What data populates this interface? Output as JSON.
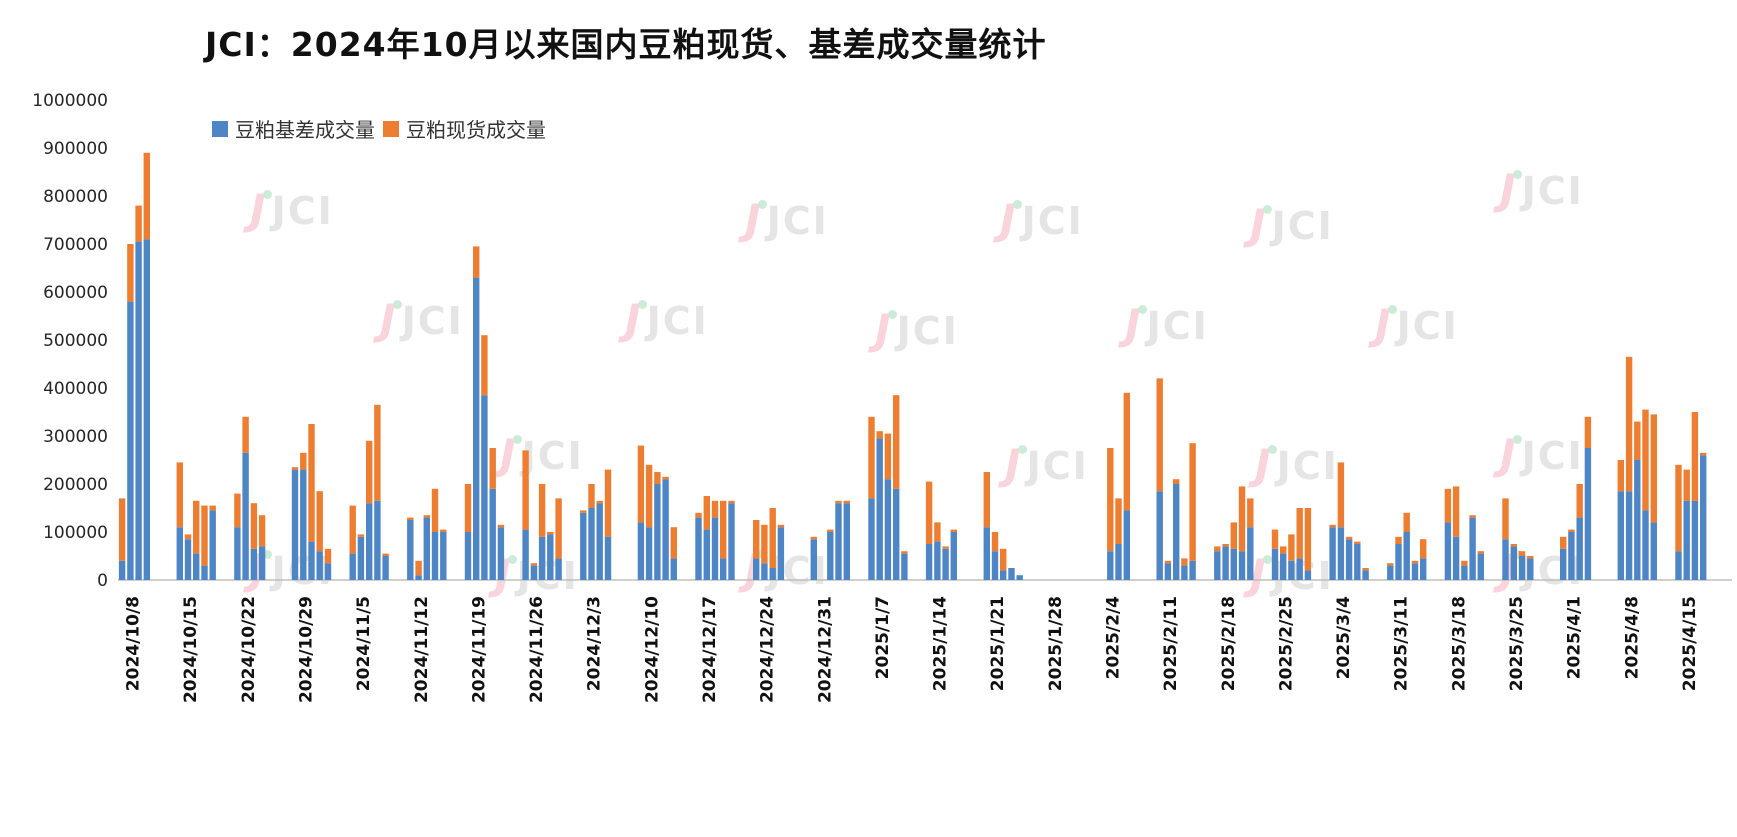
{
  "title": "JCI：2024年10月以来国内豆粕现货、基差成交量统计",
  "watermark": {
    "icon": "J",
    "label": "JCI"
  },
  "legend": [
    {
      "label": "豆粕基差成交量",
      "color": "#4E86C5"
    },
    {
      "label": "豆粕现货成交量",
      "color": "#ED7D31"
    }
  ],
  "chart_data": {
    "type": "bar",
    "stacked": true,
    "title": "JCI：2024年10月以来国内豆粕现货、基差成交量统计",
    "xlabel": "",
    "ylabel": "",
    "ylim": [
      0,
      1000000
    ],
    "ytick_step": 100000,
    "grid": false,
    "legend_position": "top-left",
    "series_names": [
      "豆粕基差成交量",
      "豆粕现货成交量"
    ],
    "colors": [
      "#4E86C5",
      "#ED7D31"
    ],
    "note": "Each week group holds up to 5 daily bars [basis_volume, spot_volume]; null = no trading day",
    "weeks": [
      {
        "label": "2024/10/8",
        "bars": [
          [
            40000,
            130000
          ],
          [
            580000,
            120000
          ],
          [
            705000,
            75000
          ],
          [
            710000,
            180000
          ],
          null
        ]
      },
      {
        "label": "2024/10/15",
        "bars": [
          [
            110000,
            135000
          ],
          [
            85000,
            10000
          ],
          [
            55000,
            110000
          ],
          [
            30000,
            125000
          ],
          [
            145000,
            10000
          ]
        ]
      },
      {
        "label": "2024/10/22",
        "bars": [
          [
            110000,
            70000
          ],
          [
            265000,
            75000
          ],
          [
            65000,
            95000
          ],
          [
            70000,
            65000
          ],
          null
        ]
      },
      {
        "label": "2024/10/29",
        "bars": [
          [
            230000,
            5000
          ],
          [
            230000,
            35000
          ],
          [
            80000,
            245000
          ],
          [
            60000,
            125000
          ],
          [
            35000,
            30000
          ]
        ]
      },
      {
        "label": "2024/11/5",
        "bars": [
          [
            55000,
            100000
          ],
          [
            90000,
            5000
          ],
          [
            160000,
            130000
          ],
          [
            165000,
            200000
          ],
          [
            50000,
            5000
          ]
        ]
      },
      {
        "label": "2024/11/12",
        "bars": [
          [
            125000,
            5000
          ],
          [
            10000,
            30000
          ],
          [
            130000,
            5000
          ],
          [
            100000,
            90000
          ],
          [
            100000,
            5000
          ]
        ]
      },
      {
        "label": "2024/11/19",
        "bars": [
          [
            100000,
            100000
          ],
          [
            630000,
            65000
          ],
          [
            385000,
            125000
          ],
          [
            190000,
            85000
          ],
          [
            110000,
            5000
          ]
        ]
      },
      {
        "label": "2024/11/26",
        "bars": [
          [
            105000,
            165000
          ],
          [
            30000,
            5000
          ],
          [
            90000,
            110000
          ],
          [
            95000,
            5000
          ],
          [
            45000,
            125000
          ]
        ]
      },
      {
        "label": "2024/12/3",
        "bars": [
          [
            140000,
            5000
          ],
          [
            150000,
            50000
          ],
          [
            160000,
            5000
          ],
          [
            90000,
            140000
          ],
          null
        ]
      },
      {
        "label": "2024/12/10",
        "bars": [
          [
            120000,
            160000
          ],
          [
            110000,
            130000
          ],
          [
            200000,
            25000
          ],
          [
            210000,
            5000
          ],
          [
            45000,
            65000
          ]
        ]
      },
      {
        "label": "2024/12/17",
        "bars": [
          [
            130000,
            10000
          ],
          [
            105000,
            70000
          ],
          [
            130000,
            35000
          ],
          [
            45000,
            120000
          ],
          [
            160000,
            5000
          ]
        ]
      },
      {
        "label": "2024/12/24",
        "bars": [
          [
            45000,
            80000
          ],
          [
            35000,
            80000
          ],
          [
            25000,
            125000
          ],
          [
            110000,
            5000
          ],
          null
        ]
      },
      {
        "label": "2024/12/31",
        "bars": [
          [
            85000,
            5000
          ],
          null,
          [
            100000,
            5000
          ],
          [
            160000,
            5000
          ],
          [
            160000,
            5000
          ]
        ]
      },
      {
        "label": "2025/1/7",
        "bars": [
          [
            170000,
            170000
          ],
          [
            295000,
            15000
          ],
          [
            210000,
            95000
          ],
          [
            190000,
            195000
          ],
          [
            55000,
            5000
          ]
        ]
      },
      {
        "label": "2025/1/14",
        "bars": [
          [
            75000,
            130000
          ],
          [
            80000,
            40000
          ],
          [
            65000,
            5000
          ],
          [
            100000,
            5000
          ],
          null
        ]
      },
      {
        "label": "2025/1/21",
        "bars": [
          [
            110000,
            115000
          ],
          [
            60000,
            40000
          ],
          [
            20000,
            45000
          ],
          [
            25000,
            0
          ],
          [
            10000,
            0
          ]
        ]
      },
      {
        "label": "2025/1/28",
        "bars": []
      },
      {
        "label": "2025/2/4",
        "bars": [
          null,
          [
            60000,
            215000
          ],
          [
            75000,
            95000
          ],
          [
            145000,
            245000
          ],
          null
        ]
      },
      {
        "label": "2025/2/11",
        "bars": [
          [
            185000,
            235000
          ],
          [
            35000,
            5000
          ],
          [
            200000,
            10000
          ],
          [
            30000,
            15000
          ],
          [
            40000,
            245000
          ]
        ]
      },
      {
        "label": "2025/2/18",
        "bars": [
          [
            60000,
            10000
          ],
          [
            70000,
            5000
          ],
          [
            65000,
            55000
          ],
          [
            60000,
            135000
          ],
          [
            110000,
            60000
          ]
        ]
      },
      {
        "label": "2025/2/25",
        "bars": [
          [
            65000,
            40000
          ],
          [
            55000,
            15000
          ],
          [
            40000,
            55000
          ],
          [
            45000,
            105000
          ],
          [
            20000,
            130000
          ]
        ]
      },
      {
        "label": "2025/3/4",
        "bars": [
          [
            110000,
            5000
          ],
          [
            110000,
            135000
          ],
          [
            85000,
            5000
          ],
          [
            75000,
            5000
          ],
          [
            20000,
            5000
          ]
        ]
      },
      {
        "label": "2025/3/11",
        "bars": [
          [
            30000,
            5000
          ],
          [
            75000,
            15000
          ],
          [
            100000,
            40000
          ],
          [
            35000,
            5000
          ],
          [
            45000,
            40000
          ]
        ]
      },
      {
        "label": "2025/3/18",
        "bars": [
          [
            120000,
            70000
          ],
          [
            90000,
            105000
          ],
          [
            30000,
            10000
          ],
          [
            130000,
            5000
          ],
          [
            55000,
            5000
          ]
        ]
      },
      {
        "label": "2025/3/25",
        "bars": [
          [
            85000,
            85000
          ],
          [
            70000,
            5000
          ],
          [
            50000,
            10000
          ],
          [
            45000,
            5000
          ],
          null
        ]
      },
      {
        "label": "2025/4/1",
        "bars": [
          [
            65000,
            25000
          ],
          [
            100000,
            5000
          ],
          [
            130000,
            70000
          ],
          [
            275000,
            65000
          ],
          null
        ]
      },
      {
        "label": "2025/4/8",
        "bars": [
          [
            185000,
            65000
          ],
          [
            185000,
            280000
          ],
          [
            250000,
            80000
          ],
          [
            145000,
            210000
          ],
          [
            120000,
            225000
          ]
        ]
      },
      {
        "label": "2025/4/15",
        "bars": [
          [
            60000,
            180000
          ],
          [
            165000,
            65000
          ],
          [
            165000,
            185000
          ],
          [
            260000,
            5000
          ],
          null
        ]
      }
    ]
  }
}
